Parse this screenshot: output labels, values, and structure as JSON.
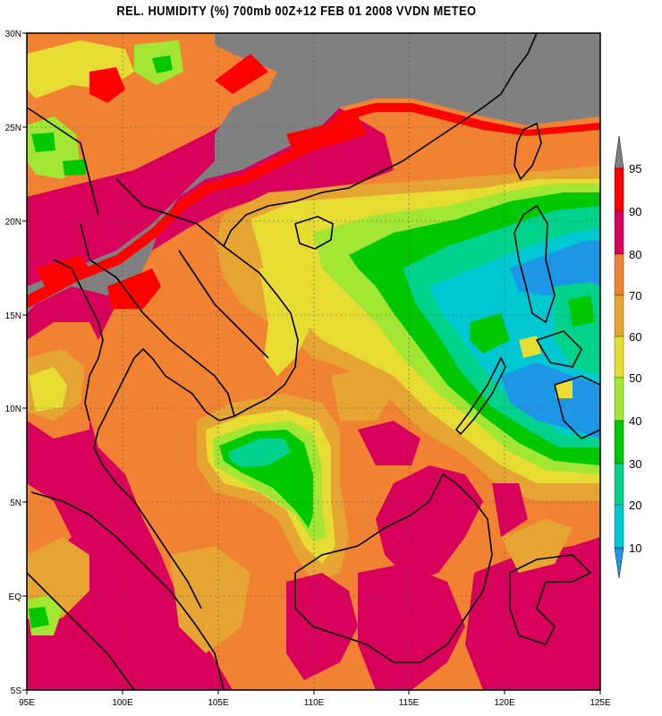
{
  "title": "REL. HUMIDITY (%) 700mb 00Z+12 FEB 01 2008 VVDN METEO",
  "axes": {
    "lon_labels": [
      "95E",
      "100E",
      "105E",
      "110E",
      "115E",
      "120E",
      "125E"
    ],
    "lat_labels": [
      "30N",
      "25N",
      "20N",
      "15N",
      "10N",
      "5N",
      "EQ",
      "5S"
    ]
  },
  "legend": {
    "labels": [
      "95",
      "90",
      "80",
      "70",
      "60",
      "50",
      "40",
      "30",
      "20",
      "10"
    ],
    "colors": {
      "above_95": "#808080",
      "90_95": "#ff0000",
      "80_90": "#d8005a",
      "70_80": "#f08232",
      "60_70": "#e6a532",
      "50_60": "#e6dc32",
      "40_50": "#a0e632",
      "30_40": "#00c800",
      "20_30": "#00d28c",
      "10_20": "#00c8d2",
      "below_10": "#1e96e6"
    }
  }
}
